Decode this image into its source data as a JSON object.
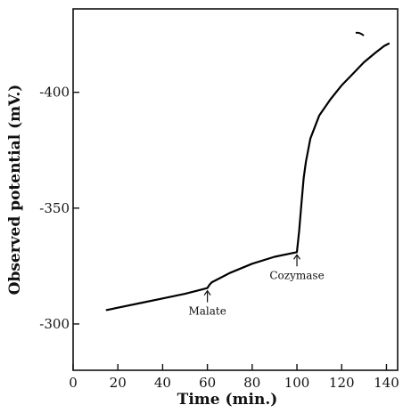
{
  "chart_data": {
    "type": "line",
    "title": "",
    "xlabel": "Time (min.)",
    "ylabel": "Observed potential (mV.)",
    "xlim": [
      0,
      145
    ],
    "ylim": [
      -280,
      -436
    ],
    "x_ticks": [
      0,
      20,
      40,
      60,
      80,
      100,
      120,
      140
    ],
    "y_ticks": [
      -300,
      -350,
      -400
    ],
    "y_tick_labels": [
      "-300",
      "-350",
      "-400"
    ],
    "grid": false,
    "series": [
      {
        "x": [
          15,
          20,
          30,
          40,
          50,
          58,
          60,
          61,
          62,
          70,
          80,
          90,
          100,
          101,
          102,
          103,
          104,
          105,
          106,
          108,
          110,
          115,
          120,
          125,
          130,
          135,
          139,
          141
        ],
        "y": [
          -306,
          -307,
          -309,
          -311,
          -313,
          -315,
          -315.5,
          -317,
          -318,
          -322,
          -326,
          -329,
          -331,
          -340,
          -352,
          -363,
          -370,
          -375,
          -380,
          -385,
          -390,
          -397,
          -403,
          -408,
          -413,
          -417,
          -420,
          -421
        ]
      }
    ],
    "annotations": [
      {
        "text": "Malate",
        "x": 60,
        "y": -315.5
      },
      {
        "text": "Cozymase",
        "x": 100,
        "y": -331
      }
    ]
  }
}
